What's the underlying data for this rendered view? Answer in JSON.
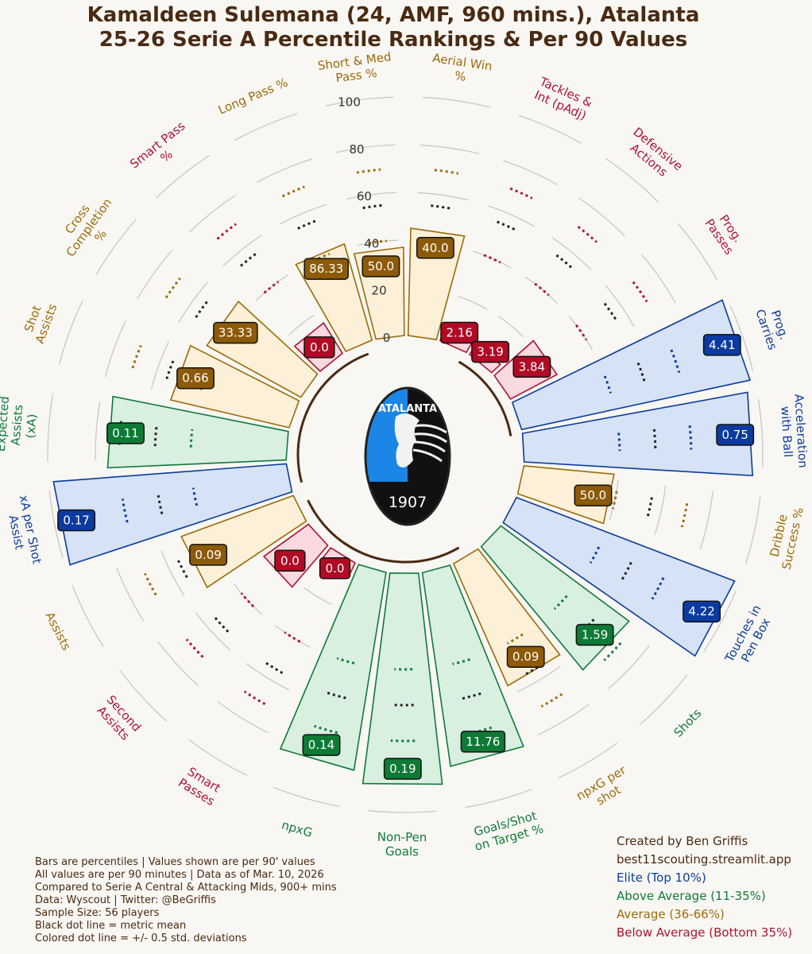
{
  "title": {
    "line1": "Kamaldeen Sulemana (24, AMF, 960 mins.), Atalanta",
    "line2": "25-26 Serie A Percentile Rankings & Per 90 Values"
  },
  "logo": {
    "top_text": "ATALANTA",
    "bottom_text": "1907"
  },
  "colors": {
    "elite": "#0a3d9c",
    "above": "#0f7a3a",
    "average": "#9c6b0a",
    "below": "#b01232",
    "text": "#4a2a12",
    "background": "#f9f7f3"
  },
  "notes": [
    "Bars are percentiles | Values shown are per 90' values",
    "All values are per 90 minutes | Data as of Mar. 10, 2026",
    "Compared to Serie A Central & Attacking Mids, 900+ mins",
    "Data: Wyscout | Twitter: @BeGriffis",
    "Sample Size: 56 players",
    "Black dot line = metric mean",
    "Colored dot line = +/- 0.5 std. deviations"
  ],
  "credit": {
    "line1": "Created by Ben Griffis",
    "line2": "best11scouting.streamlit.app"
  },
  "legend": [
    {
      "label": "Elite (Top 10%)",
      "tier": "elite"
    },
    {
      "label": "Above Average (11-35%)",
      "tier": "above"
    },
    {
      "label": "Average (36-66%)",
      "tier": "average"
    },
    {
      "label": "Below Average (Bottom 35%)",
      "tier": "below"
    }
  ],
  "chart_data": {
    "type": "polar-bar",
    "rlim": [
      0,
      100
    ],
    "radial_ticks": [
      0,
      20,
      40,
      60,
      80,
      100
    ],
    "metrics": [
      {
        "label": "Aerial Win %",
        "value": "40.0",
        "percentile": 45,
        "tier": "average"
      },
      {
        "label": "Tackles & Int (pAdj)",
        "value": "2.16",
        "percentile": 5,
        "tier": "below"
      },
      {
        "label": "Defensive Actions",
        "value": "3.19",
        "percentile": 5,
        "tier": "below"
      },
      {
        "label": "Prog. Passes",
        "value": "3.84",
        "percentile": 22,
        "tier": "below"
      },
      {
        "label": "Prog. Carries",
        "value": "4.41",
        "percentile": 98,
        "tier": "elite"
      },
      {
        "label": "Acceleration with Ball",
        "value": "0.75",
        "percentile": 96,
        "tier": "elite"
      },
      {
        "label": "Dribble Success %",
        "value": "50.0",
        "percentile": 38,
        "tier": "average"
      },
      {
        "label": "Touches in Pen Box",
        "value": "4.22",
        "percentile": 98,
        "tier": "elite"
      },
      {
        "label": "Shots",
        "value": "1.59",
        "percentile": 67,
        "tier": "above"
      },
      {
        "label": "npxG per shot",
        "value": "0.09",
        "percentile": 56,
        "tier": "average"
      },
      {
        "label": "Goals/Shot on Target %",
        "value": "11.76",
        "percentile": 82,
        "tier": "above"
      },
      {
        "label": "Non-Pen Goals",
        "value": "0.19",
        "percentile": 89,
        "tier": "above"
      },
      {
        "label": "npxG",
        "value": "0.14",
        "percentile": 84,
        "tier": "above"
      },
      {
        "label": "Smart Passes",
        "value": "0.0",
        "percentile": 7,
        "tier": "below"
      },
      {
        "label": "Second Assists",
        "value": "0.0",
        "percentile": 23,
        "tier": "below"
      },
      {
        "label": "Assists",
        "value": "0.09",
        "percentile": 50,
        "tier": "average"
      },
      {
        "label": "xA per Shot Assist",
        "value": "0.17",
        "percentile": 98,
        "tier": "elite"
      },
      {
        "label": "Expected Assists (xA)",
        "value": "0.11",
        "percentile": 75,
        "tier": "above"
      },
      {
        "label": "Shot Assists",
        "value": "0.66",
        "percentile": 51,
        "tier": "average"
      },
      {
        "label": "Cross Completion %",
        "value": "33.33",
        "percentile": 45,
        "tier": "average"
      },
      {
        "label": "Smart Pass %",
        "value": "0.0",
        "percentile": 15,
        "tier": "below"
      },
      {
        "label": "Long Pass %",
        "value": "86.33",
        "percentile": 42,
        "tier": "average"
      },
      {
        "label": "Short & Med Pass %",
        "value": "50.0",
        "percentile": 37,
        "tier": "average"
      }
    ]
  }
}
